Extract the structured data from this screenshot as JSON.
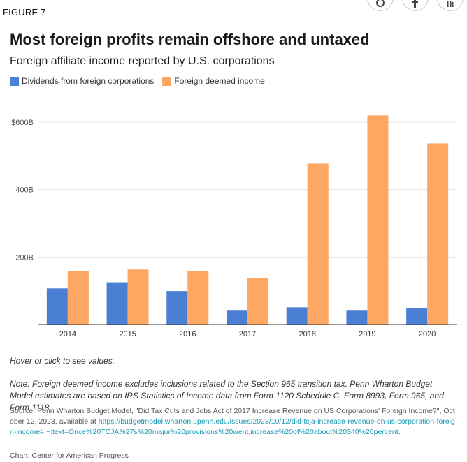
{
  "figure_label": "FIGURE 7",
  "share_icons": [
    "twitter-icon",
    "facebook-icon",
    "linkedin-icon"
  ],
  "chart_data": {
    "type": "bar",
    "title": "Most foreign profits remain offshore and untaxed",
    "subtitle": "Foreign affiliate income reported by U.S. corporations",
    "categories": [
      "2014",
      "2015",
      "2016",
      "2017",
      "2018",
      "2019",
      "2020"
    ],
    "series": [
      {
        "name": "Dividends from foreign corporations",
        "color": "#4a7fd4",
        "values": [
          107,
          125,
          99,
          43,
          51,
          43,
          49
        ]
      },
      {
        "name": "Foreign deemed income",
        "color": "#fda762",
        "values": [
          158,
          163,
          158,
          137,
          477,
          620,
          537
        ]
      }
    ],
    "ylim": [
      0,
      600
    ],
    "yticks": [
      {
        "value": 200,
        "label": "200B"
      },
      {
        "value": 400,
        "label": "400B"
      },
      {
        "value": 600,
        "label": "$600B"
      }
    ],
    "xlabel": "",
    "ylabel": "",
    "grid": true
  },
  "hover_note": "Hover or click to see values.",
  "note": "Note: Foreign deemed income excludes inclusions related to the Section 965 transition tax. Penn Wharton Budget Model estimates are based on IRS Statistics of Income data from Form 1120 Schedule C, Form 8993, Form 965, and Form 1118.",
  "source_prefix": "Source: Penn Wharton Budget Model, \"Did Tax Cuts and Jobs Act of 2017 Increase Revenue on US Corporations' Foreign Income?\", October 12, 2023, available at ",
  "source_link": "https://budgetmodel.wharton.upenn.edu/issues/2023/10/12/did-tcja-increase-revenue-on-us-corporation-foreign-income#:~:text=Once%20TCJA%27s%20major%20provisions%20went,increase%20of%20about%20340%20percent",
  "source_suffix": ".",
  "credit": "Chart: Center for American Progress"
}
